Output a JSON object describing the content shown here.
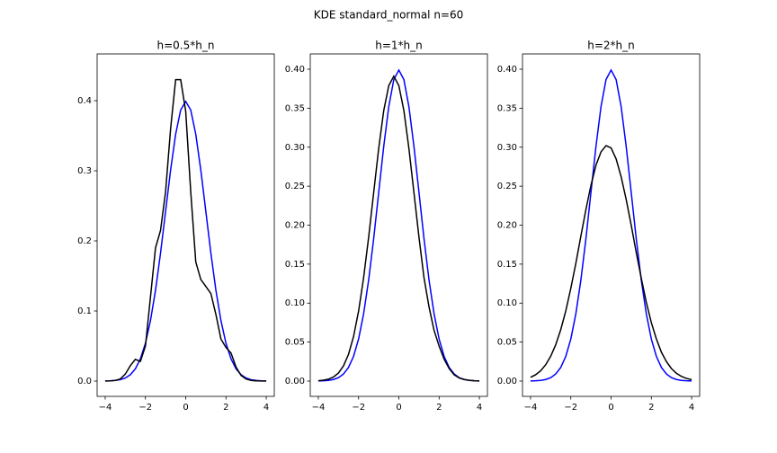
{
  "title": "KDE standard_normal n=60",
  "chart_data": [
    {
      "type": "line",
      "title": "h=0.5*h_n",
      "x": [
        -4,
        -3.75,
        -3.5,
        -3.25,
        -3,
        -2.75,
        -2.5,
        -2.25,
        -2,
        -1.75,
        -1.5,
        -1.25,
        -1,
        -0.75,
        -0.5,
        -0.25,
        0,
        0.25,
        0.5,
        0.75,
        1,
        1.25,
        1.5,
        1.75,
        2,
        2.25,
        2.5,
        2.75,
        3,
        3.25,
        3.5,
        3.75,
        4
      ],
      "series": [
        {
          "color": "#0000ff",
          "values": [
            0.0001,
            0.0004,
            0.0009,
            0.002,
            0.0044,
            0.0091,
            0.0175,
            0.0317,
            0.054,
            0.0863,
            0.1295,
            0.1826,
            0.242,
            0.3011,
            0.3521,
            0.3867,
            0.3989,
            0.3867,
            0.3521,
            0.3011,
            0.242,
            0.1826,
            0.1295,
            0.0863,
            0.054,
            0.0317,
            0.0175,
            0.0091,
            0.0044,
            0.002,
            0.0009,
            0.0004,
            0.0001
          ]
        },
        {
          "color": "#000000",
          "values": [
            0.0001,
            0.0003,
            0.001,
            0.003,
            0.01,
            0.022,
            0.031,
            0.028,
            0.05,
            0.12,
            0.19,
            0.215,
            0.27,
            0.36,
            0.43,
            0.43,
            0.385,
            0.27,
            0.17,
            0.145,
            0.135,
            0.125,
            0.095,
            0.06,
            0.048,
            0.04,
            0.02,
            0.008,
            0.003,
            0.001,
            0.0004,
            0.0001,
            0.0001
          ]
        }
      ],
      "xlim": [
        -4.4,
        4.4
      ],
      "xticks": [
        {
          "value": -4,
          "label": "−4"
        },
        {
          "value": -2,
          "label": "−2"
        },
        0,
        2,
        4
      ],
      "ylim": [
        -0.0218,
        0.4667
      ],
      "yticks": [
        {
          "value": 0,
          "label": "0.0"
        },
        0.1,
        0.2,
        0.3,
        0.4
      ]
    },
    {
      "type": "line",
      "title": "h=1*h_n",
      "x": [
        -4,
        -3.75,
        -3.5,
        -3.25,
        -3,
        -2.75,
        -2.5,
        -2.25,
        -2,
        -1.75,
        -1.5,
        -1.25,
        -1,
        -0.75,
        -0.5,
        -0.25,
        0,
        0.25,
        0.5,
        0.75,
        1,
        1.25,
        1.5,
        1.75,
        2,
        2.25,
        2.5,
        2.75,
        3,
        3.25,
        3.5,
        3.75,
        4
      ],
      "series": [
        {
          "color": "#0000ff",
          "values": [
            0.0001,
            0.0004,
            0.0009,
            0.002,
            0.0044,
            0.0091,
            0.0175,
            0.0317,
            0.054,
            0.0863,
            0.1295,
            0.1826,
            0.242,
            0.3011,
            0.3521,
            0.3867,
            0.3989,
            0.3867,
            0.3521,
            0.3011,
            0.242,
            0.1826,
            0.1295,
            0.0863,
            0.054,
            0.0317,
            0.0175,
            0.0091,
            0.0044,
            0.002,
            0.0009,
            0.0004,
            0.0001
          ]
        },
        {
          "color": "#000000",
          "values": [
            0.0005,
            0.0011,
            0.0024,
            0.0052,
            0.0103,
            0.0195,
            0.0343,
            0.0571,
            0.0897,
            0.1325,
            0.1845,
            0.2417,
            0.2985,
            0.347,
            0.379,
            0.391,
            0.379,
            0.347,
            0.2985,
            0.2417,
            0.1845,
            0.1325,
            0.095,
            0.065,
            0.045,
            0.028,
            0.016,
            0.008,
            0.004,
            0.002,
            0.001,
            0.0004,
            0.0001
          ]
        }
      ],
      "xlim": [
        -4.4,
        4.4
      ],
      "xticks": [
        {
          "value": -4,
          "label": "−4"
        },
        {
          "value": -2,
          "label": "−2"
        },
        0,
        2,
        4
      ],
      "ylim": [
        -0.0196,
        0.4196
      ],
      "yticks": [
        {
          "value": 0,
          "label": "0.00"
        },
        0.05,
        {
          "value": 0.1,
          "label": "0.10"
        },
        0.15,
        {
          "value": 0.2,
          "label": "0.20"
        },
        0.25,
        {
          "value": 0.3,
          "label": "0.30"
        },
        0.35,
        {
          "value": 0.4,
          "label": "0.40"
        }
      ]
    },
    {
      "type": "line",
      "title": "h=2*h_n",
      "x": [
        -4,
        -3.75,
        -3.5,
        -3.25,
        -3,
        -2.75,
        -2.5,
        -2.25,
        -2,
        -1.75,
        -1.5,
        -1.25,
        -1,
        -0.75,
        -0.5,
        -0.25,
        0,
        0.25,
        0.5,
        0.75,
        1,
        1.25,
        1.5,
        1.75,
        2,
        2.25,
        2.5,
        2.75,
        3,
        3.25,
        3.5,
        3.75,
        4
      ],
      "series": [
        {
          "color": "#0000ff",
          "values": [
            0.0001,
            0.0004,
            0.0009,
            0.002,
            0.0044,
            0.0091,
            0.0175,
            0.0317,
            0.054,
            0.0863,
            0.1295,
            0.1826,
            0.242,
            0.3011,
            0.3521,
            0.3867,
            0.3989,
            0.3867,
            0.3521,
            0.3011,
            0.242,
            0.1826,
            0.1295,
            0.0863,
            0.054,
            0.0317,
            0.0175,
            0.0091,
            0.0044,
            0.002,
            0.0009,
            0.0004,
            0.0001
          ]
        },
        {
          "color": "#000000",
          "values": [
            0.0048,
            0.0081,
            0.0132,
            0.0209,
            0.0318,
            0.0466,
            0.066,
            0.09,
            0.119,
            0.151,
            0.186,
            0.22,
            0.251,
            0.277,
            0.294,
            0.302,
            0.299,
            0.285,
            0.262,
            0.233,
            0.2,
            0.165,
            0.132,
            0.101,
            0.075,
            0.054,
            0.037,
            0.025,
            0.016,
            0.0099,
            0.0059,
            0.0034,
            0.0019
          ]
        }
      ],
      "xlim": [
        -4.4,
        4.4
      ],
      "xticks": [
        {
          "value": -4,
          "label": "−4"
        },
        {
          "value": -2,
          "label": "−2"
        },
        0,
        2,
        4
      ],
      "ylim": [
        -0.0196,
        0.4196
      ],
      "yticks": [
        {
          "value": 0,
          "label": "0.00"
        },
        0.05,
        {
          "value": 0.1,
          "label": "0.10"
        },
        0.15,
        {
          "value": 0.2,
          "label": "0.20"
        },
        0.25,
        {
          "value": 0.3,
          "label": "0.30"
        },
        0.35,
        {
          "value": 0.4,
          "label": "0.40"
        }
      ]
    }
  ]
}
